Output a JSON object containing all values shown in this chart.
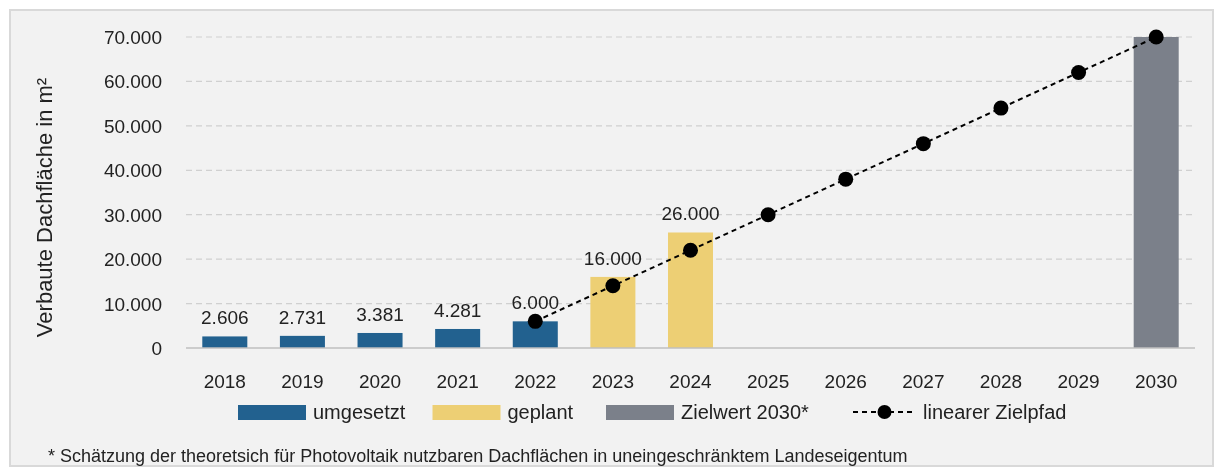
{
  "chart_data": {
    "type": "bar",
    "ylabel": "Verbaute Dachfläche in m²",
    "categories": [
      "2018",
      "2019",
      "2020",
      "2021",
      "2022",
      "2023",
      "2024",
      "2025",
      "2026",
      "2027",
      "2028",
      "2029",
      "2030"
    ],
    "series": [
      {
        "name": "umgesetzt",
        "color": "#22618f",
        "values": [
          2606,
          2731,
          3381,
          4281,
          6000,
          null,
          null,
          null,
          null,
          null,
          null,
          null,
          null
        ],
        "value_labels": [
          "2.606",
          "2.731",
          "3.381",
          "4.281",
          "6.000",
          null,
          null,
          null,
          null,
          null,
          null,
          null,
          null
        ]
      },
      {
        "name": "geplant",
        "color": "#edcf74",
        "values": [
          null,
          null,
          null,
          null,
          null,
          16000,
          26000,
          null,
          null,
          null,
          null,
          null,
          null
        ],
        "value_labels": [
          null,
          null,
          null,
          null,
          null,
          "16.000",
          "26.000",
          null,
          null,
          null,
          null,
          null,
          null
        ]
      },
      {
        "name": "Zielwert 2030*",
        "color": "#7b808a",
        "values": [
          null,
          null,
          null,
          null,
          null,
          null,
          null,
          null,
          null,
          null,
          null,
          null,
          70000
        ]
      },
      {
        "name": "linearer Zielpfad",
        "type": "line",
        "color": "#000000",
        "line_style": "dashed",
        "marker": "circle",
        "values": [
          null,
          null,
          null,
          null,
          6000,
          14000,
          22000,
          30000,
          38000,
          46000,
          54000,
          62000,
          70000
        ]
      }
    ],
    "ylim": [
      0,
      70000
    ],
    "yticks": [
      {
        "value": 0,
        "label": "0"
      },
      {
        "value": 10000,
        "label": "10.000"
      },
      {
        "value": 20000,
        "label": "20.000"
      },
      {
        "value": 30000,
        "label": "30.000"
      },
      {
        "value": 40000,
        "label": "40.000"
      },
      {
        "value": 50000,
        "label": "50.000"
      },
      {
        "value": 60000,
        "label": "60.000"
      },
      {
        "value": 70000,
        "label": "70.000"
      }
    ],
    "grid": "y",
    "legend": "bottom",
    "annotations": [
      "* Schätzung der theoretsich für Photovoltaik nutzbaren Dachflächen in uneingeschränktem Landeseigentum"
    ]
  }
}
